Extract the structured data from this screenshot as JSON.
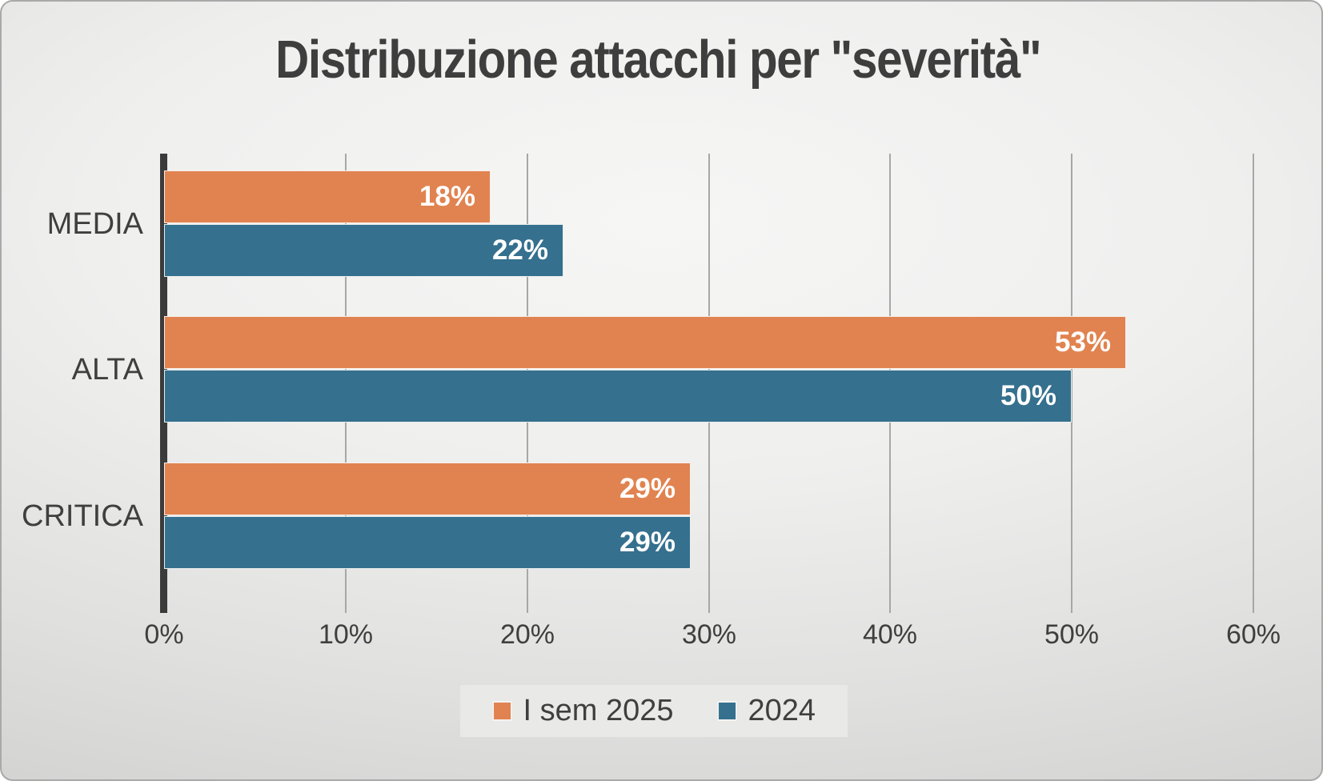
{
  "chart_data": {
    "type": "bar",
    "orientation": "horizontal",
    "title": "Distribuzione attacchi per \"severità\"",
    "categories": [
      "MEDIA",
      "ALTA",
      "CRITICA"
    ],
    "series": [
      {
        "name": "I sem 2025",
        "color": "#E18350",
        "values": [
          18,
          53,
          29
        ]
      },
      {
        "name": "2024",
        "color": "#35708E",
        "values": [
          22,
          50,
          29
        ]
      }
    ],
    "data_labels": [
      [
        "18%",
        "53%",
        "29%"
      ],
      [
        "22%",
        "50%",
        "29%"
      ]
    ],
    "x_ticks": [
      "0%",
      "10%",
      "20%",
      "30%",
      "40%",
      "50%",
      "60%"
    ],
    "xlim": [
      0,
      60
    ],
    "grid": true,
    "legend_position": "bottom",
    "colors": {
      "axis": "#3B3B3B",
      "gridline": "#A7A7A6",
      "text": "#3F3F3F",
      "value_label": "#FFFFFF",
      "legend_bg": "#E9E9E8"
    }
  }
}
